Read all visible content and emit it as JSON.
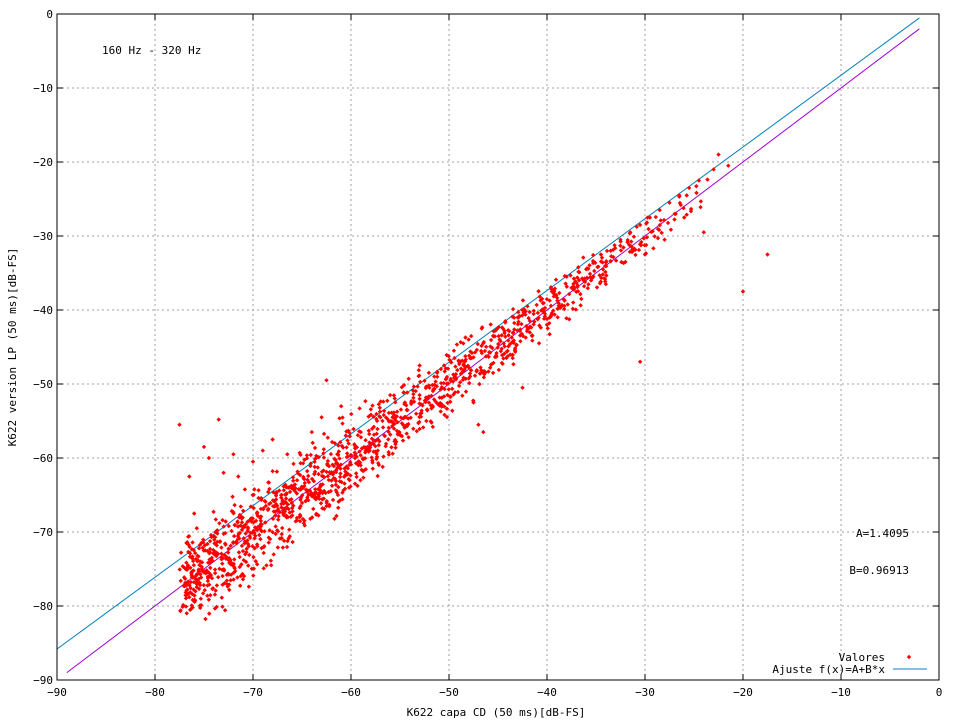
{
  "chart_data": {
    "type": "scatter",
    "title": "",
    "annotation": "160 Hz - 320 Hz",
    "xlabel": "K622 capa CD (50 ms)[dB-FS]",
    "ylabel": "K622 version LP (50 ms)[dB-FS]",
    "xlim": [
      -90,
      0
    ],
    "ylim": [
      -90,
      0
    ],
    "x_ticks": [
      -90,
      -80,
      -70,
      -60,
      -50,
      -40,
      -30,
      -20,
      -10,
      0
    ],
    "y_ticks": [
      -90,
      -80,
      -70,
      -60,
      -50,
      -40,
      -30,
      -20,
      -10,
      0
    ],
    "grid": true,
    "legend_position": "bottom-right",
    "fit_params": {
      "A_label": "A=1.4095",
      "B_label": "B=0.96913",
      "A": 1.4095,
      "B": 0.96913
    },
    "series": [
      {
        "name": "Valores",
        "kind": "scatter",
        "color": "#ff0000",
        "trend": {
          "slope": 1.0,
          "intercept": 0.0,
          "x_min": -77.5,
          "x_max": -22.5
        },
        "points": [
          [
            -77.5,
            -55.5
          ],
          [
            -76.5,
            -62.5
          ],
          [
            -76.0,
            -67.5
          ],
          [
            -75.0,
            -58.5
          ],
          [
            -74.5,
            -60.0
          ],
          [
            -73.5,
            -54.8
          ],
          [
            -73.0,
            -62.0
          ],
          [
            -72.0,
            -59.5
          ],
          [
            -71.5,
            -62.5
          ],
          [
            -70.0,
            -60.5
          ],
          [
            -69.0,
            -59.0
          ],
          [
            -68.0,
            -57.5
          ],
          [
            -66.5,
            -59.5
          ],
          [
            -65.5,
            -63.0
          ],
          [
            -64.0,
            -56.5
          ],
          [
            -63.0,
            -54.5
          ],
          [
            -62.5,
            -66.5
          ],
          [
            -62.5,
            -49.5
          ],
          [
            -61.0,
            -53.0
          ],
          [
            -59.0,
            -56.5
          ],
          [
            -57.0,
            -54.5
          ],
          [
            -56.0,
            -51.5
          ],
          [
            -54.5,
            -52.5
          ],
          [
            -53.0,
            -51.5
          ],
          [
            -53.0,
            -47.5
          ],
          [
            -52.0,
            -50.5
          ],
          [
            -51.5,
            -49.0
          ],
          [
            -50.5,
            -47.5
          ],
          [
            -49.5,
            -45.5
          ],
          [
            -48.5,
            -47.5
          ],
          [
            -48.0,
            -44.0
          ],
          [
            -47.5,
            -52.5
          ],
          [
            -47.0,
            -55.5
          ],
          [
            -46.5,
            -44.5
          ],
          [
            -46.5,
            -56.5
          ],
          [
            -45.5,
            -43.5
          ],
          [
            -45.5,
            -48.5
          ],
          [
            -44.5,
            -42.5
          ],
          [
            -43.5,
            -46.5
          ],
          [
            -43.0,
            -41.0
          ],
          [
            -42.5,
            -50.5
          ],
          [
            -42.0,
            -39.5
          ],
          [
            -41.5,
            -43.5
          ],
          [
            -40.5,
            -38.5
          ],
          [
            -40.0,
            -42.0
          ],
          [
            -39.5,
            -37.5
          ],
          [
            -38.5,
            -39.5
          ],
          [
            -38.0,
            -35.5
          ],
          [
            -37.5,
            -37.0
          ],
          [
            -36.5,
            -38.5
          ],
          [
            -36.0,
            -34.5
          ],
          [
            -35.5,
            -36.0
          ],
          [
            -34.5,
            -32.5
          ],
          [
            -34.0,
            -36.5
          ],
          [
            -33.5,
            -32.0
          ],
          [
            -32.5,
            -30.5
          ],
          [
            -32.0,
            -33.5
          ],
          [
            -31.5,
            -29.5
          ],
          [
            -30.5,
            -47.0
          ],
          [
            -30.5,
            -28.5
          ],
          [
            -30.0,
            -32.5
          ],
          [
            -29.5,
            -27.5
          ],
          [
            -28.5,
            -26.5
          ],
          [
            -28.0,
            -30.5
          ],
          [
            -27.5,
            -25.5
          ],
          [
            -26.5,
            -24.5
          ],
          [
            -26.0,
            -27.5
          ],
          [
            -25.5,
            -23.5
          ],
          [
            -24.5,
            -22.5
          ],
          [
            -24.0,
            -29.5
          ],
          [
            -23.0,
            -21.0
          ],
          [
            -22.5,
            -19.0
          ],
          [
            -21.5,
            -20.5
          ],
          [
            -20.0,
            -37.5
          ],
          [
            -17.5,
            -32.5
          ]
        ]
      },
      {
        "name": "Ajuste f(x)=A+B*x",
        "kind": "line",
        "color": "#0080c0",
        "equation": {
          "a": 1.4095,
          "b": 0.96913
        },
        "x_range": [
          -90,
          -2
        ]
      },
      {
        "kind": "line",
        "color": "#a000d0",
        "equation": {
          "a": 0.0,
          "b": 1.0
        },
        "x_range": [
          -89,
          -2
        ]
      }
    ]
  }
}
